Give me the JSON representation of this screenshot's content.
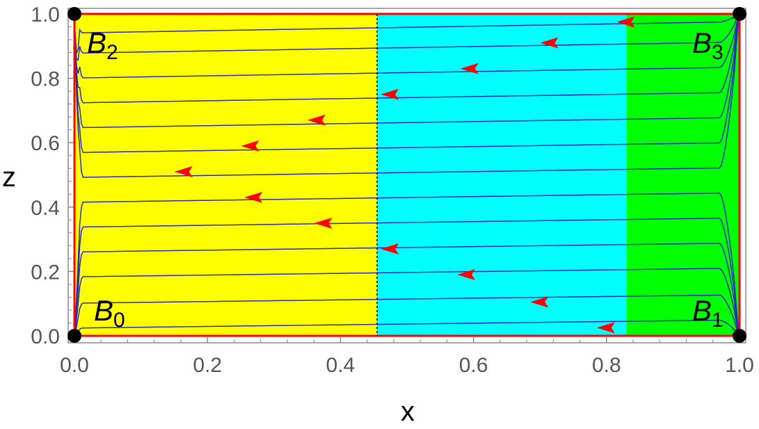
{
  "chart_data": {
    "type": "phase-portrait",
    "xlabel": "x",
    "ylabel": "z",
    "xlim": [
      0,
      1
    ],
    "ylim": [
      0,
      1
    ],
    "x_ticks": [
      "0.0",
      "0.2",
      "0.4",
      "0.6",
      "0.8",
      "1.0"
    ],
    "y_ticks": [
      "0.0",
      "0.2",
      "0.4",
      "0.6",
      "0.8",
      "1.0"
    ],
    "regions": [
      {
        "x_from": 0,
        "x_to": 0.455,
        "color": "#ffff00"
      },
      {
        "x_from": 0.455,
        "x_to": 0.83,
        "color": "#00ffff"
      },
      {
        "x_from": 0.83,
        "x_to": 1.0,
        "color": "#00ff00"
      }
    ],
    "divider_x": 0.455,
    "critical_points": [
      {
        "label": "B",
        "sub": "0",
        "x": 0,
        "z": 0
      },
      {
        "label": "B",
        "sub": "1",
        "x": 1,
        "z": 0
      },
      {
        "label": "B",
        "sub": "2",
        "x": 0,
        "z": 1
      },
      {
        "label": "B",
        "sub": "3",
        "x": 1,
        "z": 1
      }
    ],
    "trajectory_levels": [
      0.025,
      0.105,
      0.19,
      0.27,
      0.35,
      0.43,
      0.51,
      0.59,
      0.67,
      0.75,
      0.83,
      0.91,
      0.975
    ],
    "arrow_positions": [
      {
        "x": 0.8,
        "z": 0.025
      },
      {
        "x": 0.7,
        "z": 0.105
      },
      {
        "x": 0.59,
        "z": 0.19
      },
      {
        "x": 0.475,
        "z": 0.27
      },
      {
        "x": 0.375,
        "z": 0.35
      },
      {
        "x": 0.27,
        "z": 0.43
      },
      {
        "x": 0.165,
        "z": 0.51
      },
      {
        "x": 0.265,
        "z": 0.59
      },
      {
        "x": 0.365,
        "z": 0.67
      },
      {
        "x": 0.475,
        "z": 0.75
      },
      {
        "x": 0.595,
        "z": 0.83
      },
      {
        "x": 0.715,
        "z": 0.91
      },
      {
        "x": 0.83,
        "z": 0.975
      }
    ],
    "colors": {
      "trajectory": "#2b2bb8",
      "arrow": "#ff0000",
      "boundary": "#ff0000",
      "point": "#000000",
      "frame": "#888888"
    },
    "grid": false
  }
}
